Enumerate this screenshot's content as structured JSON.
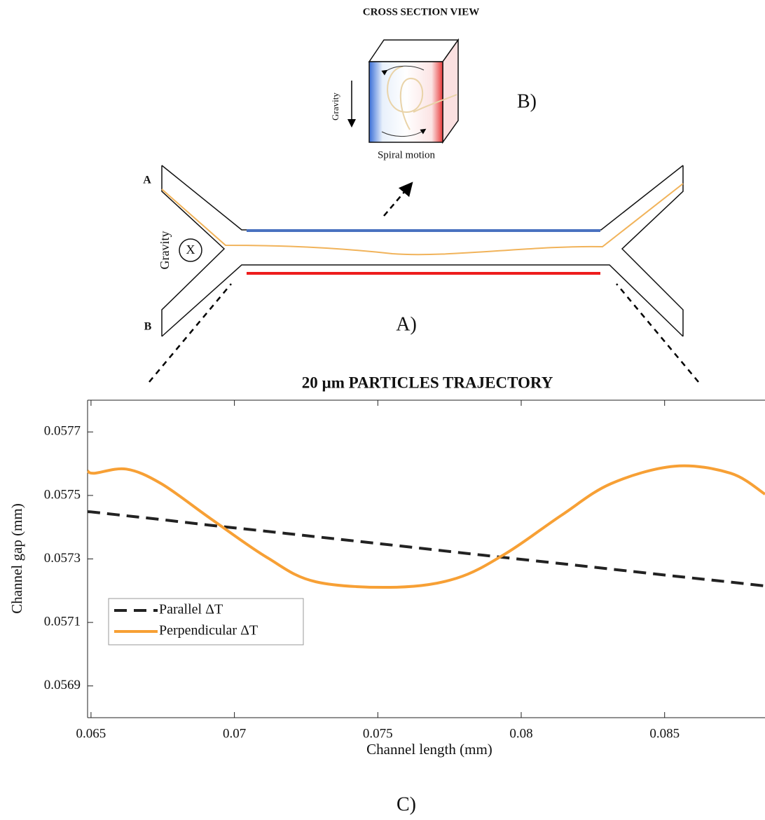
{
  "diagram": {
    "cross_section_title": "CROSS SECTION VIEW",
    "panel_b_label": "B)",
    "cube_gravity": "Gravity",
    "cube_caption": "Spiral motion",
    "inlet_a": "A",
    "inlet_b": "B",
    "channel_gravity": "Gravity",
    "gravity_symbol": "X",
    "panel_a_label": "A)",
    "panel_c_label": "C)"
  },
  "chart_data": {
    "type": "line",
    "title": "20 µm PARTICLES TRAJECTORY",
    "x_label": "Channel length (mm)",
    "y_label": "Channel gap (mm)",
    "x": [
      0.06488,
      0.06512,
      0.06623,
      0.06745,
      0.06917,
      0.07113,
      0.07284,
      0.07566,
      0.07774,
      0.07946,
      0.08141,
      0.08313,
      0.08534,
      0.0873,
      0.0885
    ],
    "series": [
      {
        "name": "Parallel ΔT",
        "color": "#222222",
        "dashed": true,
        "values": [
          0.057449,
          0.057447,
          0.057436,
          0.057424,
          0.057406,
          0.057387,
          0.05737,
          0.057342,
          0.057321,
          0.057304,
          0.057285,
          0.057268,
          0.057246,
          0.057227,
          0.057215
        ]
      },
      {
        "name": "Perpendicular ΔT",
        "color": "#f7a035",
        "dashed": false,
        "values": [
          0.057577,
          0.05757,
          0.057583,
          0.057537,
          0.057427,
          0.057305,
          0.057228,
          0.057211,
          0.057239,
          0.057317,
          0.057438,
          0.057537,
          0.057592,
          0.05757,
          0.057504
        ]
      }
    ],
    "xlim": [
      0.06488,
      0.0885
    ],
    "ylim": [
      0.0568,
      0.0578
    ],
    "xticks": [
      0.065,
      0.07,
      0.075,
      0.08,
      0.085
    ],
    "yticks": [
      0.0569,
      0.0571,
      0.0573,
      0.0575,
      0.0577
    ],
    "grid": false,
    "legend": "lower left"
  }
}
